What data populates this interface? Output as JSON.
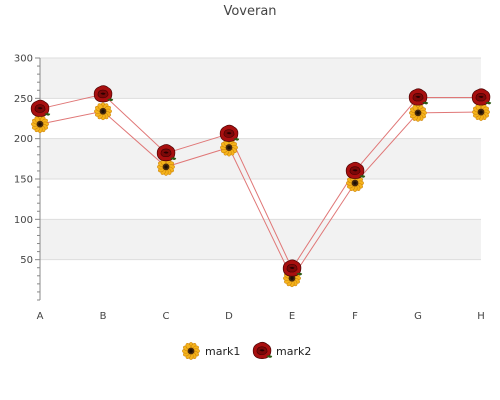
{
  "chart_data": {
    "type": "line",
    "title": "Voveran",
    "xlabel": "",
    "ylabel": "",
    "categories": [
      "A",
      "B",
      "C",
      "D",
      "E",
      "F",
      "G",
      "H"
    ],
    "ylim": [
      0,
      300
    ],
    "yticks": [
      50,
      100,
      150,
      200,
      250,
      300
    ],
    "grid": true,
    "legend_position": "bottom",
    "series": [
      {
        "name": "mark1",
        "values": [
          218,
          234,
          165,
          189,
          27,
          145,
          232,
          233
        ],
        "color": "#e07777",
        "marker_icon": "sunflower-icon"
      },
      {
        "name": "mark2",
        "values": [
          237,
          255,
          182,
          206,
          39,
          160,
          251,
          251
        ],
        "color": "#e07777",
        "marker_icon": "rose-icon"
      }
    ]
  }
}
